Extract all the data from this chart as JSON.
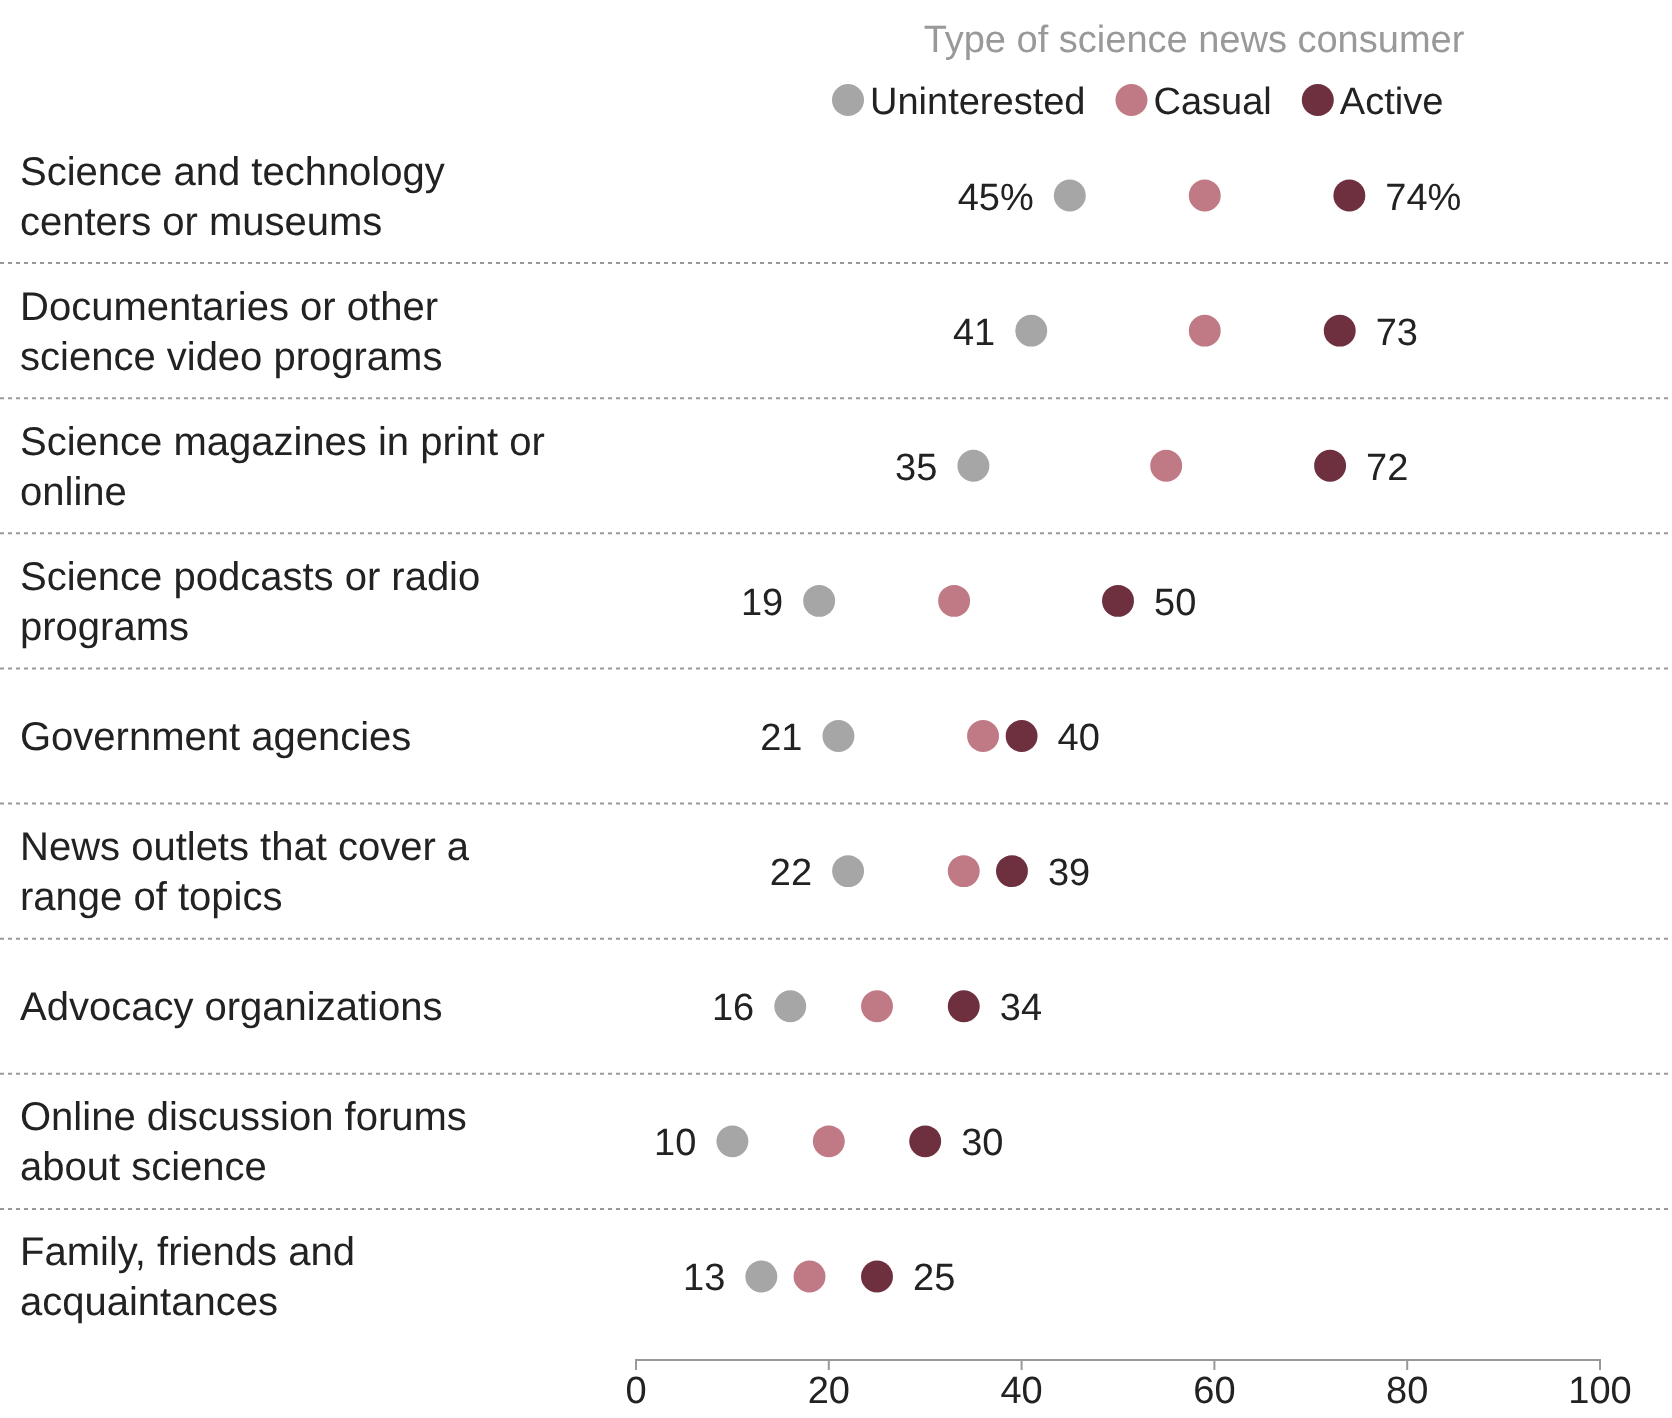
{
  "chart_data": {
    "type": "scatter",
    "orientation": "horizontal",
    "legend_title": "Type of science news consumer",
    "legend": "top",
    "categories": [
      "Science and technology centers or museums",
      "Documentaries or other science video programs",
      "Science magazines in print or online",
      "Science podcasts or radio programs",
      "Government agencies",
      "News outlets that cover a range of topics",
      "Advocacy organizations",
      "Online discussion forums about science",
      "Family, friends and acquaintances"
    ],
    "series": [
      {
        "name": "Uninterested",
        "color": "#a6a6a6",
        "values": [
          45,
          41,
          35,
          19,
          21,
          22,
          16,
          10,
          13
        ],
        "value_labels": [
          "45%",
          "41",
          "35",
          "19",
          "21",
          "22",
          "16",
          "10",
          "13"
        ]
      },
      {
        "name": "Casual",
        "color": "#c07a85",
        "values": [
          59,
          59,
          55,
          33,
          36,
          34,
          25,
          20,
          18
        ]
      },
      {
        "name": "Active",
        "color": "#6e2f3f",
        "values": [
          74,
          73,
          72,
          50,
          40,
          39,
          34,
          30,
          25
        ],
        "value_labels": [
          "74%",
          "73",
          "72",
          "50",
          "40",
          "39",
          "34",
          "30",
          "25"
        ]
      }
    ],
    "xlim": [
      0,
      100
    ],
    "xticks": [
      0,
      20,
      40,
      60,
      80,
      100
    ],
    "grid": "y",
    "marker": "circle"
  }
}
